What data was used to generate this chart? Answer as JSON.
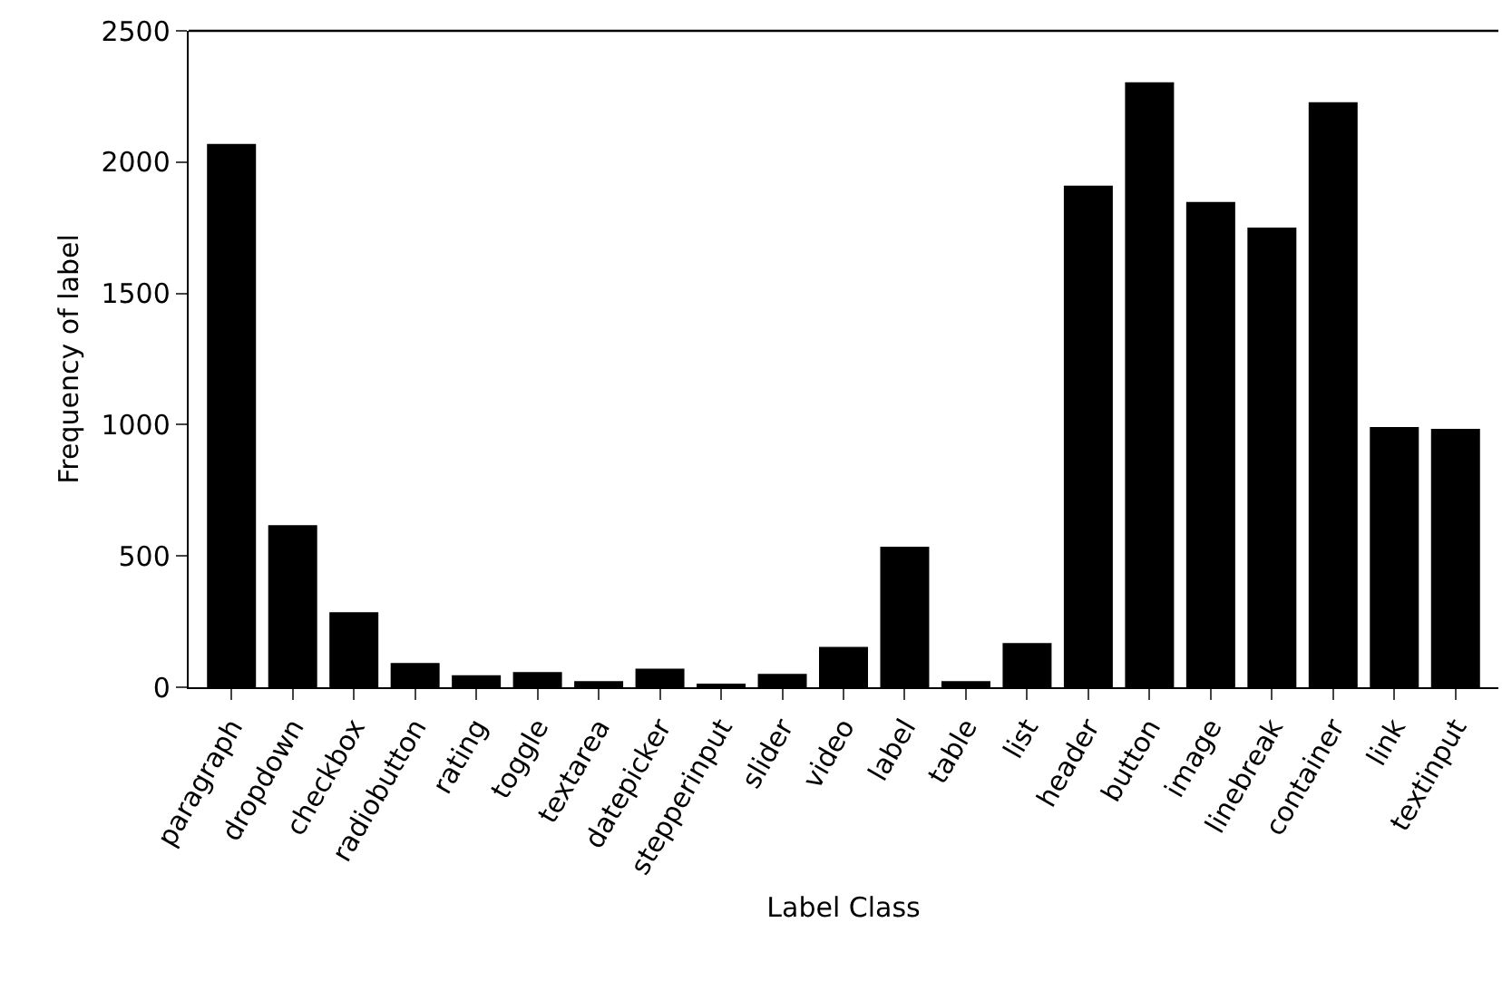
{
  "chart_data": {
    "type": "bar",
    "xlabel": "Label Class",
    "ylabel": "Frequency of label",
    "categories": [
      "paragraph",
      "dropdown",
      "checkbox",
      "radiobutton",
      "rating",
      "toggle",
      "textarea",
      "datepicker",
      "stepperinput",
      "slider",
      "video",
      "label",
      "table",
      "list",
      "header",
      "button",
      "image",
      "linebreak",
      "container",
      "link",
      "textinput"
    ],
    "values": [
      2069,
      617,
      286,
      92,
      46,
      58,
      23,
      71,
      9,
      51,
      154,
      535,
      23,
      168,
      1910,
      2304,
      1848,
      1751,
      2228,
      991,
      984
    ],
    "color": "#000000",
    "ylim": [
      0,
      2500
    ],
    "yticks": [
      0,
      500,
      1000,
      1500,
      2000,
      2500
    ],
    "grid": false
  }
}
